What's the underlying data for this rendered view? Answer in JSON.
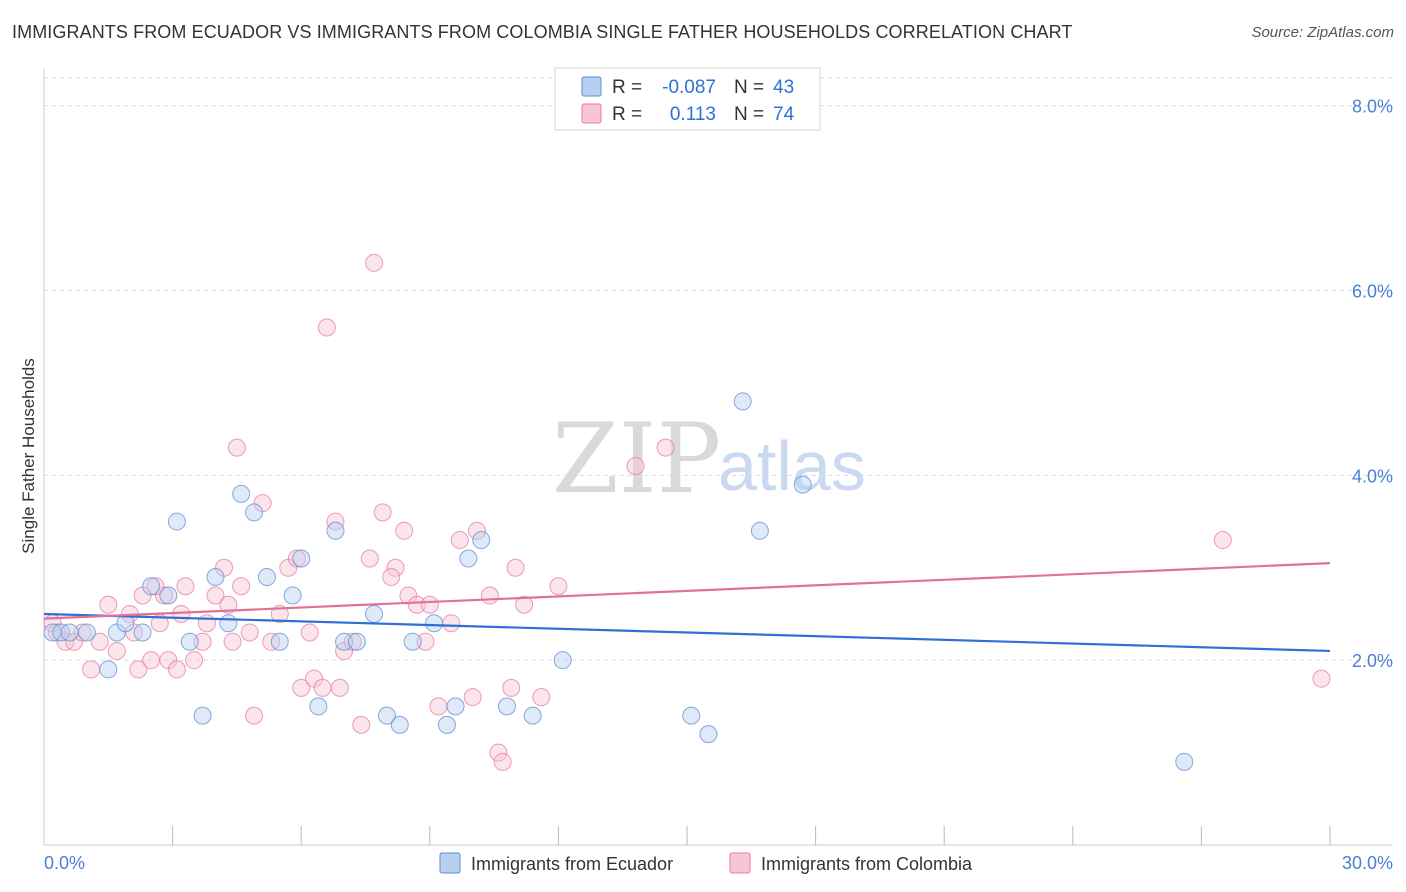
{
  "title": "IMMIGRANTS FROM ECUADOR VS IMMIGRANTS FROM COLOMBIA SINGLE FATHER HOUSEHOLDS CORRELATION CHART",
  "source": "Source: ZipAtlas.com",
  "watermark": {
    "zip": "ZIP",
    "atlas": "atlas"
  },
  "legend": {
    "rows": [
      {
        "r_label": "R =",
        "r_value": "-0.087",
        "n_label": "N =",
        "n_value": "43"
      },
      {
        "r_label": "R =",
        "r_value": "0.113",
        "n_label": "N =",
        "n_value": "74"
      }
    ]
  },
  "colors": {
    "ecuador": "#5b8fd9",
    "ecuador_fill": "#b8cff0",
    "colombia": "#e87aa0",
    "colombia_fill": "#f7c6d5",
    "ecuador_line": "#2f6fd6",
    "colombia_line": "#e0729a",
    "tick_text": "#4a7fd4"
  },
  "chart_data": {
    "type": "scatter",
    "title": "IMMIGRANTS FROM ECUADOR VS IMMIGRANTS FROM COLOMBIA SINGLE FATHER HOUSEHOLDS CORRELATION CHART",
    "xlabel": "",
    "ylabel": "Single Father Households",
    "xlim": [
      0,
      30
    ],
    "ylim": [
      0,
      8.3
    ],
    "x_tick_labels": [
      "0.0%",
      "30.0%"
    ],
    "y_ticks": [
      2,
      4,
      6,
      8
    ],
    "y_tick_labels": [
      "2.0%",
      "4.0%",
      "6.0%",
      "8.0%"
    ],
    "grid": true,
    "series": [
      {
        "name": "Immigrants from Ecuador",
        "trend": [
          [
            0,
            2.5
          ],
          [
            30,
            2.1
          ]
        ],
        "points": [
          [
            0.2,
            2.3
          ],
          [
            0.4,
            2.3
          ],
          [
            0.6,
            2.3
          ],
          [
            1.0,
            2.3
          ],
          [
            1.5,
            1.9
          ],
          [
            1.7,
            2.3
          ],
          [
            1.9,
            2.4
          ],
          [
            2.3,
            2.3
          ],
          [
            2.5,
            2.8
          ],
          [
            2.9,
            2.7
          ],
          [
            3.1,
            3.5
          ],
          [
            3.4,
            2.2
          ],
          [
            3.7,
            1.4
          ],
          [
            4.0,
            2.9
          ],
          [
            4.3,
            2.4
          ],
          [
            4.6,
            3.8
          ],
          [
            4.9,
            3.6
          ],
          [
            5.2,
            2.9
          ],
          [
            5.5,
            2.2
          ],
          [
            5.8,
            2.7
          ],
          [
            6.0,
            3.1
          ],
          [
            6.4,
            1.5
          ],
          [
            6.8,
            3.4
          ],
          [
            7.0,
            2.2
          ],
          [
            7.3,
            2.2
          ],
          [
            7.7,
            2.5
          ],
          [
            8.0,
            1.4
          ],
          [
            8.3,
            1.3
          ],
          [
            8.6,
            2.2
          ],
          [
            9.1,
            2.4
          ],
          [
            9.4,
            1.3
          ],
          [
            9.6,
            1.5
          ],
          [
            9.9,
            3.1
          ],
          [
            10.2,
            3.3
          ],
          [
            10.8,
            1.5
          ],
          [
            11.4,
            1.4
          ],
          [
            12.1,
            2.0
          ],
          [
            15.1,
            1.4
          ],
          [
            15.5,
            1.2
          ],
          [
            16.3,
            4.8
          ],
          [
            16.7,
            3.4
          ],
          [
            17.7,
            3.9
          ],
          [
            26.6,
            0.9
          ]
        ]
      },
      {
        "name": "Immigrants from Colombia",
        "trend": [
          [
            0,
            2.45
          ],
          [
            30,
            3.05
          ]
        ],
        "points": [
          [
            0.2,
            2.4
          ],
          [
            0.3,
            2.3
          ],
          [
            0.5,
            2.2
          ],
          [
            0.7,
            2.2
          ],
          [
            0.9,
            2.3
          ],
          [
            1.1,
            1.9
          ],
          [
            1.3,
            2.2
          ],
          [
            1.5,
            2.6
          ],
          [
            1.7,
            2.1
          ],
          [
            2.0,
            2.5
          ],
          [
            2.1,
            2.3
          ],
          [
            2.2,
            1.9
          ],
          [
            2.3,
            2.7
          ],
          [
            2.5,
            2.0
          ],
          [
            2.7,
            2.4
          ],
          [
            2.8,
            2.7
          ],
          [
            2.9,
            2.0
          ],
          [
            3.1,
            1.9
          ],
          [
            3.2,
            2.5
          ],
          [
            3.5,
            2.0
          ],
          [
            3.7,
            2.2
          ],
          [
            3.8,
            2.4
          ],
          [
            4.0,
            2.7
          ],
          [
            4.2,
            3.0
          ],
          [
            4.4,
            2.2
          ],
          [
            4.5,
            4.3
          ],
          [
            4.6,
            2.8
          ],
          [
            4.8,
            2.3
          ],
          [
            4.9,
            1.4
          ],
          [
            5.1,
            3.7
          ],
          [
            5.3,
            2.2
          ],
          [
            5.5,
            2.5
          ],
          [
            5.7,
            3.0
          ],
          [
            5.9,
            3.1
          ],
          [
            6.0,
            1.7
          ],
          [
            6.2,
            2.3
          ],
          [
            6.3,
            1.8
          ],
          [
            6.5,
            1.7
          ],
          [
            6.6,
            5.6
          ],
          [
            6.8,
            3.5
          ],
          [
            6.9,
            1.7
          ],
          [
            7.0,
            2.1
          ],
          [
            7.2,
            2.2
          ],
          [
            7.4,
            1.3
          ],
          [
            7.6,
            3.1
          ],
          [
            7.9,
            3.6
          ],
          [
            8.2,
            3.0
          ],
          [
            8.4,
            3.4
          ],
          [
            8.5,
            2.7
          ],
          [
            8.7,
            2.6
          ],
          [
            8.9,
            2.2
          ],
          [
            9.0,
            2.6
          ],
          [
            9.2,
            1.5
          ],
          [
            9.5,
            2.4
          ],
          [
            9.7,
            3.3
          ],
          [
            10.0,
            1.6
          ],
          [
            10.1,
            3.4
          ],
          [
            10.4,
            2.7
          ],
          [
            10.6,
            1.0
          ],
          [
            10.7,
            0.9
          ],
          [
            10.9,
            1.7
          ],
          [
            11.0,
            3.0
          ],
          [
            11.2,
            2.6
          ],
          [
            11.6,
            1.6
          ],
          [
            12.0,
            2.8
          ],
          [
            13.8,
            4.1
          ],
          [
            14.5,
            4.3
          ],
          [
            7.7,
            6.3
          ],
          [
            8.1,
            2.9
          ],
          [
            4.3,
            2.6
          ],
          [
            2.6,
            2.8
          ],
          [
            3.3,
            2.8
          ],
          [
            27.5,
            3.3
          ],
          [
            29.8,
            1.8
          ]
        ]
      }
    ]
  },
  "bottom_legend": {
    "ecuador_label": "Immigrants from Ecuador",
    "colombia_label": "Immigrants from Colombia"
  }
}
